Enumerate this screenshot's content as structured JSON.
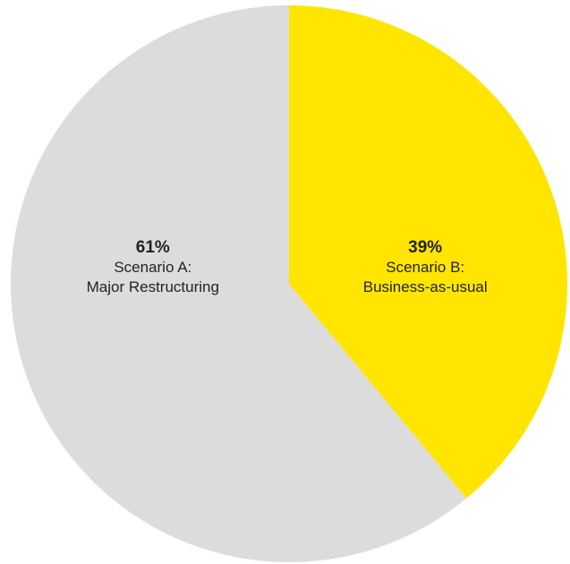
{
  "chart_data": {
    "type": "pie",
    "slices": [
      {
        "value": 39,
        "percent_label": "39%",
        "label_lines": [
          "Scenario B:",
          "Business-as-usual"
        ],
        "color": "#FFE500"
      },
      {
        "value": 61,
        "percent_label": "61%",
        "label_lines": [
          "Scenario A:",
          "Major Restructuring"
        ],
        "color": "#DCDCDC"
      }
    ],
    "start": "top",
    "direction": "clockwise",
    "legend": "none"
  }
}
